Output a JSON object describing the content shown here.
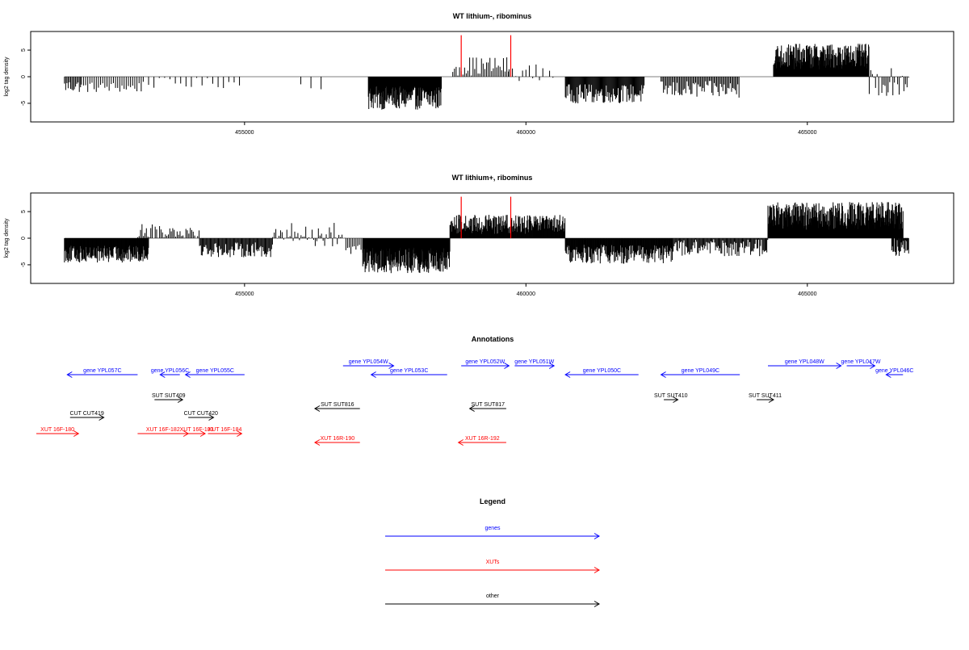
{
  "chart_data": [
    {
      "type": "bar",
      "title": "WT lithium-, ribominus",
      "ylabel": "log2 tag density",
      "xlim": [
        451200,
        467600
      ],
      "ylim": [
        -8.5,
        8.5
      ],
      "x_ticks": [
        {
          "value": 455000,
          "label": "455000"
        },
        {
          "value": 460000,
          "label": "460000"
        },
        {
          "value": 465000,
          "label": "465000"
        }
      ],
      "y_ticks": [
        {
          "value": 5,
          "label": "5"
        },
        {
          "value": 0,
          "label": "0"
        },
        {
          "value": -5,
          "label": "-5"
        }
      ],
      "bar_color": "#000000",
      "highlight_color": "#ff0000",
      "segments": [
        {
          "x0": 451800,
          "x1": 452100,
          "mean": -1.8,
          "amp": 1.2,
          "every": 22
        },
        {
          "x0": 452100,
          "x1": 453200,
          "mean": -2.0,
          "amp": 1.0,
          "every": 38
        },
        {
          "x0": 453200,
          "x1": 455000,
          "mean": -1.2,
          "amp": 1.0,
          "every": 95
        },
        {
          "x0": 456000,
          "x1": 456400,
          "mean": -1.6,
          "amp": 0.8,
          "every": 180
        },
        {
          "x0": 457200,
          "x1": 458500,
          "mean": -4.0,
          "amp": 2.2,
          "every": 8
        },
        {
          "x0": 458700,
          "x1": 459700,
          "mean": 2.0,
          "amp": 1.8,
          "every": 30
        },
        {
          "x0": 459700,
          "x1": 460500,
          "mean": 0.8,
          "amp": 1.6,
          "every": 60
        },
        {
          "x0": 460700,
          "x1": 462100,
          "mean": -3.2,
          "amp": 1.8,
          "every": 14
        },
        {
          "x0": 462400,
          "x1": 463800,
          "mean": -2.4,
          "amp": 1.6,
          "every": 22
        },
        {
          "x0": 464400,
          "x1": 466100,
          "mean": 3.8,
          "amp": 2.4,
          "every": 7
        },
        {
          "x0": 466100,
          "x1": 466800,
          "mean": -1.0,
          "amp": 2.6,
          "every": 28
        }
      ],
      "highlights": [
        {
          "x": 458850,
          "y": 7.8
        },
        {
          "x": 459730,
          "y": 7.8
        }
      ]
    },
    {
      "type": "bar",
      "title": "WT lithium+, ribominus",
      "ylabel": "log2 tag density",
      "xlim": [
        451200,
        467600
      ],
      "ylim": [
        -8.5,
        8.5
      ],
      "x_ticks": [
        {
          "value": 455000,
          "label": "455000"
        },
        {
          "value": 460000,
          "label": "460000"
        },
        {
          "value": 465000,
          "label": "465000"
        }
      ],
      "y_ticks": [
        {
          "value": 5,
          "label": "5"
        },
        {
          "value": 0,
          "label": "0"
        },
        {
          "value": -5,
          "label": "-5"
        }
      ],
      "bar_color": "#000000",
      "highlight_color": "#ff0000",
      "segments": [
        {
          "x0": 451800,
          "x1": 453300,
          "mean": -3.0,
          "amp": 1.6,
          "every": 9
        },
        {
          "x0": 453100,
          "x1": 454200,
          "mean": 1.4,
          "amp": 1.4,
          "every": 26
        },
        {
          "x0": 454200,
          "x1": 455500,
          "mean": -2.2,
          "amp": 1.4,
          "every": 16
        },
        {
          "x0": 455500,
          "x1": 456800,
          "mean": 0.6,
          "amp": 2.4,
          "every": 28
        },
        {
          "x0": 456800,
          "x1": 457100,
          "mean": -2.0,
          "amp": 1.0,
          "every": 30
        },
        {
          "x0": 457100,
          "x1": 458650,
          "mean": -4.2,
          "amp": 2.4,
          "every": 7
        },
        {
          "x0": 458650,
          "x1": 460700,
          "mean": 2.6,
          "amp": 1.8,
          "every": 9
        },
        {
          "x0": 460700,
          "x1": 462600,
          "mean": -3.0,
          "amp": 1.8,
          "every": 10
        },
        {
          "x0": 462600,
          "x1": 464300,
          "mean": -1.8,
          "amp": 1.6,
          "every": 16
        },
        {
          "x0": 464300,
          "x1": 466700,
          "mean": 4.2,
          "amp": 2.6,
          "every": 6
        },
        {
          "x0": 466500,
          "x1": 466800,
          "mean": -1.5,
          "amp": 2.0,
          "every": 12
        }
      ],
      "highlights": [
        {
          "x": 458850,
          "y": 7.8
        },
        {
          "x": 459730,
          "y": 7.8
        }
      ]
    }
  ],
  "annotations": {
    "title": "Annotations",
    "xlim": [
      451200,
      467600
    ],
    "colors": {
      "gene": "#0000ff",
      "xut": "#ff0000",
      "other": "#000000"
    },
    "features": [
      {
        "label": "gene YPL057C",
        "kind": "gene",
        "start": 453100,
        "end": 451850,
        "row": 0
      },
      {
        "label": "gene YPL056C",
        "kind": "gene",
        "start": 453850,
        "end": 453500,
        "row": 0
      },
      {
        "label": "gene YPL055C",
        "kind": "gene",
        "start": 455000,
        "end": 453950,
        "row": 0
      },
      {
        "label": "gene YPL054W",
        "kind": "gene",
        "start": 456750,
        "end": 457650,
        "row": -1
      },
      {
        "label": "gene YPL053C",
        "kind": "gene",
        "start": 458600,
        "end": 457250,
        "row": 0
      },
      {
        "label": "gene YPL052W",
        "kind": "gene",
        "start": 458850,
        "end": 459700,
        "row": -1
      },
      {
        "label": "gene YPL051W",
        "kind": "gene",
        "start": 459800,
        "end": 460500,
        "row": -1
      },
      {
        "label": "gene YPL050C",
        "kind": "gene",
        "start": 462000,
        "end": 460700,
        "row": 0
      },
      {
        "label": "gene YPL049C",
        "kind": "gene",
        "start": 463800,
        "end": 462400,
        "row": 0
      },
      {
        "label": "gene YPL048W",
        "kind": "gene",
        "start": 464300,
        "end": 465600,
        "row": -1
      },
      {
        "label": "gene YPL047W",
        "kind": "gene",
        "start": 465700,
        "end": 466200,
        "row": -1
      },
      {
        "label": "gene YPL046C",
        "kind": "gene",
        "start": 466700,
        "end": 466400,
        "row": 0
      },
      {
        "label": "SUT SUT409",
        "kind": "other",
        "start": 453400,
        "end": 453900,
        "row": 1
      },
      {
        "label": "SUT SUT816",
        "kind": "other",
        "start": 457050,
        "end": 456250,
        "row": 2
      },
      {
        "label": "SUT SUT817",
        "kind": "other",
        "start": 459650,
        "end": 459000,
        "row": 2
      },
      {
        "label": "SUT SUT410",
        "kind": "other",
        "start": 462450,
        "end": 462700,
        "row": 1
      },
      {
        "label": "SUT SUT411",
        "kind": "other",
        "start": 464100,
        "end": 464400,
        "row": 1
      },
      {
        "label": "CUT CUT419",
        "kind": "other",
        "start": 451900,
        "end": 452500,
        "row": 3
      },
      {
        "label": "CUT CUT420",
        "kind": "other",
        "start": 454000,
        "end": 454450,
        "row": 3
      },
      {
        "label": "XUT 16F-180",
        "kind": "xut",
        "start": 451300,
        "end": 452050,
        "row": 4
      },
      {
        "label": "XUT 16F-182",
        "kind": "xut",
        "start": 453100,
        "end": 454000,
        "row": 4
      },
      {
        "label": "XUT 16F-183",
        "kind": "xut",
        "start": 454000,
        "end": 454300,
        "row": 4
      },
      {
        "label": "XUT 16F-184",
        "kind": "xut",
        "start": 454350,
        "end": 454950,
        "row": 4
      },
      {
        "label": "XUT 16R-190",
        "kind": "xut",
        "start": 457050,
        "end": 456250,
        "row": 5
      },
      {
        "label": "XUT 16R-192",
        "kind": "xut",
        "start": 459650,
        "end": 458800,
        "row": 5
      }
    ]
  },
  "legend": {
    "title": "Legend",
    "items": [
      {
        "label": "genes",
        "color": "#0000ff"
      },
      {
        "label": "XUTs",
        "color": "#ff0000"
      },
      {
        "label": "other",
        "color": "#000000"
      }
    ]
  }
}
